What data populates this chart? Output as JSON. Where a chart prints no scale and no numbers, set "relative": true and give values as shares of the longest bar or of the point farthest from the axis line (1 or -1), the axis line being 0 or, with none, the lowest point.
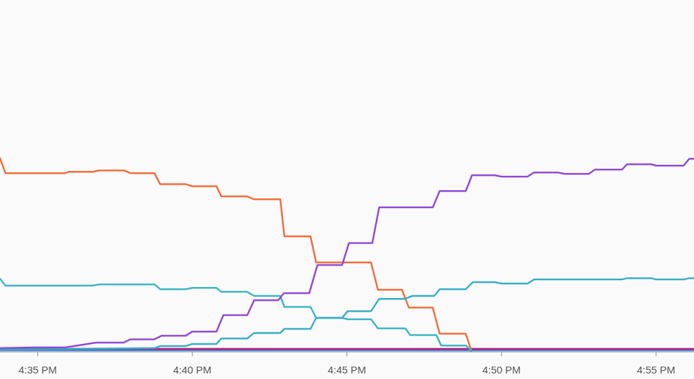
{
  "chart_data": {
    "type": "line",
    "relative": true,
    "line_style": "solid",
    "xlim": [
      16.563,
      16.9371
    ],
    "xticks": [
      {
        "value": 16.58333,
        "label": "4:35 PM"
      },
      {
        "value": 16.66667,
        "label": "4:40 PM"
      },
      {
        "value": 16.75,
        "label": "4:45 PM"
      },
      {
        "value": 16.83333,
        "label": "4:50 PM"
      },
      {
        "value": 16.91667,
        "label": "4:55 PM"
      }
    ],
    "series": [
      {
        "color": "#2f6ed6",
        "x": [
          16.563,
          16.75,
          16.9371
        ],
        "values": [
          0.004,
          0.004,
          0.004
        ]
      },
      {
        "color": "#c0247a",
        "x": [
          16.563,
          16.75,
          16.9371
        ],
        "values": [
          0.011,
          0.011,
          0.011
        ]
      },
      {
        "color": "#f26b38",
        "x": [
          16.563,
          16.5659,
          16.5982,
          16.6,
          16.613,
          16.6167,
          16.6297,
          16.6334,
          16.6463,
          16.6493,
          16.663,
          16.6667,
          16.6797,
          16.6823,
          16.6963,
          16.7,
          16.7141,
          16.7163,
          16.7304,
          16.7334,
          16.763,
          16.7667,
          16.7797,
          16.7834,
          16.7963,
          16.8,
          16.8141,
          16.8171
        ],
        "values": [
          1.0,
          0.922,
          0.922,
          0.929,
          0.929,
          0.936,
          0.936,
          0.922,
          0.922,
          0.865,
          0.865,
          0.854,
          0.854,
          0.801,
          0.801,
          0.786,
          0.786,
          0.594,
          0.594,
          0.459,
          0.459,
          0.317,
          0.317,
          0.224,
          0.224,
          0.089,
          0.089,
          0
        ]
      },
      {
        "color": "#3bb3c3",
        "x": [
          16.563,
          16.5659,
          16.613,
          16.6167,
          16.6463,
          16.6493,
          16.663,
          16.6667,
          16.6797,
          16.6823,
          16.6963,
          16.7,
          16.7141,
          16.7163,
          16.7304,
          16.7334,
          16.7474,
          16.7504,
          16.763,
          16.7667,
          16.7815,
          16.7841,
          16.7982,
          16.8008,
          16.8141,
          16.8171
        ],
        "values": [
          0.374,
          0.338,
          0.338,
          0.345,
          0.345,
          0.32,
          0.32,
          0.327,
          0.327,
          0.306,
          0.306,
          0.285,
          0.285,
          0.228,
          0.228,
          0.171,
          0.171,
          0.164,
          0.164,
          0.117,
          0.117,
          0.082,
          0.082,
          0.028,
          0.028,
          0
        ]
      },
      {
        "color": "#36adc4",
        "x": [
          16.563,
          16.613,
          16.6463,
          16.6493,
          16.663,
          16.6667,
          16.6797,
          16.6823,
          16.6963,
          16.7,
          16.7141,
          16.7163,
          16.7304,
          16.7334,
          16.7474,
          16.7504,
          16.763,
          16.7674,
          16.7815,
          16.7852,
          16.7971,
          16.8,
          16.8141,
          16.8178,
          16.8297,
          16.8334,
          16.8474,
          16.8508,
          16.8982,
          16.9011,
          16.9141,
          16.9167,
          16.9315,
          16.9345,
          16.9371
        ],
        "values": [
          0.007,
          0.011,
          0.014,
          0.025,
          0.025,
          0.036,
          0.036,
          0.064,
          0.064,
          0.093,
          0.093,
          0.114,
          0.114,
          0.171,
          0.171,
          0.206,
          0.206,
          0.27,
          0.27,
          0.285,
          0.285,
          0.32,
          0.32,
          0.356,
          0.356,
          0.349,
          0.349,
          0.37,
          0.37,
          0.377,
          0.377,
          0.37,
          0.37,
          0.377,
          0.377
        ]
      },
      {
        "color": "#9147d6",
        "x": [
          16.563,
          16.5815,
          16.5982,
          16.6148,
          16.6297,
          16.6334,
          16.6463,
          16.65,
          16.663,
          16.6667,
          16.6797,
          16.6834,
          16.6963,
          16.7,
          16.713,
          16.716,
          16.7297,
          16.7341,
          16.7474,
          16.7511,
          16.7637,
          16.7674,
          16.7963,
          16.8,
          16.8141,
          16.8174,
          16.8297,
          16.8334,
          16.8474,
          16.8508,
          16.8637,
          16.8674,
          16.8804,
          16.8837,
          16.8982,
          16.9011,
          16.9141,
          16.9167,
          16.9315,
          16.9345,
          16.9371
        ],
        "values": [
          0.014,
          0.018,
          0.018,
          0.043,
          0.043,
          0.06,
          0.06,
          0.078,
          0.078,
          0.1,
          0.1,
          0.185,
          0.185,
          0.263,
          0.263,
          0.299,
          0.299,
          0.445,
          0.445,
          0.559,
          0.559,
          0.744,
          0.744,
          0.829,
          0.829,
          0.911,
          0.911,
          0.904,
          0.904,
          0.925,
          0.925,
          0.918,
          0.918,
          0.94,
          0.94,
          0.968,
          0.968,
          0.961,
          0.961,
          0.996,
          0.996
        ]
      }
    ]
  }
}
